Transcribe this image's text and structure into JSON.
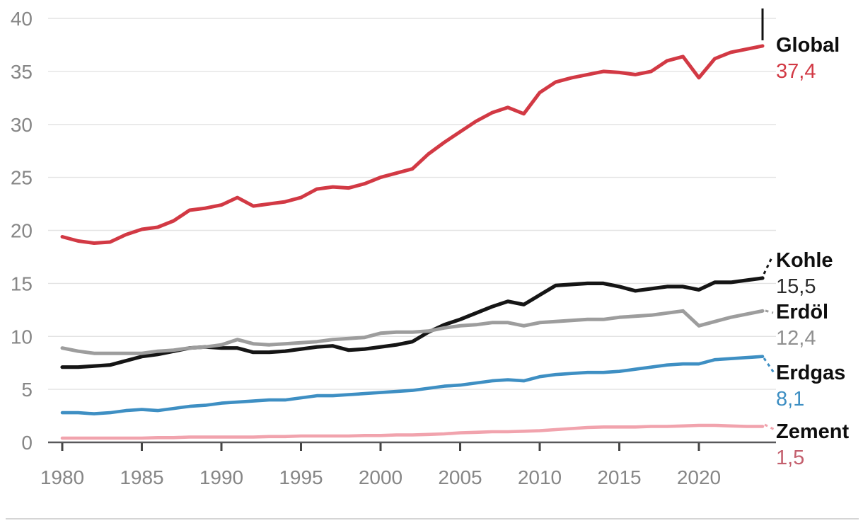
{
  "chart_data": {
    "type": "line",
    "x": [
      1980,
      1981,
      1982,
      1983,
      1984,
      1985,
      1986,
      1987,
      1988,
      1989,
      1990,
      1991,
      1992,
      1993,
      1994,
      1995,
      1996,
      1997,
      1998,
      1999,
      2000,
      2001,
      2002,
      2003,
      2004,
      2005,
      2006,
      2007,
      2008,
      2009,
      2010,
      2011,
      2012,
      2013,
      2014,
      2015,
      2016,
      2017,
      2018,
      2019,
      2020,
      2021,
      2022,
      2023,
      2024
    ],
    "x_ticks": [
      1980,
      1985,
      1990,
      1995,
      2000,
      2005,
      2010,
      2015,
      2020
    ],
    "y_ticks": [
      0,
      5,
      10,
      15,
      20,
      25,
      30,
      35,
      40
    ],
    "xlim": [
      1980,
      2024
    ],
    "ylim": [
      0,
      40
    ],
    "grid": "horizontal",
    "legend_position": "right-end-labels",
    "series": [
      {
        "id": "global",
        "label": "Global",
        "end_value_label": "37,4",
        "color": "#d23944",
        "value_color": "#d23944",
        "values": [
          19.4,
          19.0,
          18.8,
          18.9,
          19.6,
          20.1,
          20.3,
          20.9,
          21.9,
          22.1,
          22.4,
          23.1,
          22.3,
          22.5,
          22.7,
          23.1,
          23.9,
          24.1,
          24.0,
          24.4,
          25.0,
          25.4,
          25.8,
          27.2,
          28.3,
          29.3,
          30.3,
          31.1,
          31.6,
          31.0,
          33.0,
          34.0,
          34.4,
          34.7,
          35.0,
          34.9,
          34.7,
          35.0,
          36.0,
          36.4,
          34.4,
          36.2,
          36.8,
          37.1,
          37.4
        ]
      },
      {
        "id": "kohle",
        "label": "Kohle",
        "end_value_label": "15,5",
        "color": "#151515",
        "value_color": "#2b2b2b",
        "values": [
          7.1,
          7.1,
          7.2,
          7.3,
          7.7,
          8.1,
          8.3,
          8.6,
          8.9,
          9.0,
          8.9,
          8.9,
          8.5,
          8.5,
          8.6,
          8.8,
          9.0,
          9.1,
          8.7,
          8.8,
          9.0,
          9.2,
          9.5,
          10.4,
          11.1,
          11.6,
          12.2,
          12.8,
          13.3,
          13.0,
          13.9,
          14.8,
          14.9,
          15.0,
          15.0,
          14.7,
          14.3,
          14.5,
          14.7,
          14.7,
          14.4,
          15.1,
          15.1,
          15.3,
          15.5
        ]
      },
      {
        "id": "erdoel",
        "label": "Erdöl",
        "end_value_label": "12,4",
        "color": "#9d9d9d",
        "value_color": "#8f8f8f",
        "values": [
          8.9,
          8.6,
          8.4,
          8.4,
          8.4,
          8.4,
          8.6,
          8.7,
          8.9,
          9.0,
          9.2,
          9.7,
          9.3,
          9.2,
          9.3,
          9.4,
          9.5,
          9.7,
          9.8,
          9.9,
          10.3,
          10.4,
          10.4,
          10.5,
          10.8,
          11.0,
          11.1,
          11.3,
          11.3,
          11.0,
          11.3,
          11.4,
          11.5,
          11.6,
          11.6,
          11.8,
          11.9,
          12.0,
          12.2,
          12.4,
          11.0,
          11.4,
          11.8,
          12.1,
          12.4
        ]
      },
      {
        "id": "erdgas",
        "label": "Erdgas",
        "end_value_label": "8,1",
        "color": "#3e8fc3",
        "value_color": "#3e8fc3",
        "values": [
          2.8,
          2.8,
          2.7,
          2.8,
          3.0,
          3.1,
          3.0,
          3.2,
          3.4,
          3.5,
          3.7,
          3.8,
          3.9,
          4.0,
          4.0,
          4.2,
          4.4,
          4.4,
          4.5,
          4.6,
          4.7,
          4.8,
          4.9,
          5.1,
          5.3,
          5.4,
          5.6,
          5.8,
          5.9,
          5.8,
          6.2,
          6.4,
          6.5,
          6.6,
          6.6,
          6.7,
          6.9,
          7.1,
          7.3,
          7.4,
          7.4,
          7.8,
          7.9,
          8.0,
          8.1
        ]
      },
      {
        "id": "zement",
        "label": "Zement",
        "end_value_label": "1,5",
        "color": "#f1a3ad",
        "value_color": "#c4606e",
        "values": [
          0.4,
          0.4,
          0.4,
          0.4,
          0.4,
          0.4,
          0.45,
          0.45,
          0.5,
          0.5,
          0.5,
          0.5,
          0.5,
          0.55,
          0.55,
          0.6,
          0.6,
          0.6,
          0.6,
          0.65,
          0.65,
          0.7,
          0.7,
          0.75,
          0.8,
          0.9,
          0.95,
          1.0,
          1.0,
          1.05,
          1.1,
          1.2,
          1.3,
          1.4,
          1.45,
          1.45,
          1.45,
          1.5,
          1.5,
          1.55,
          1.6,
          1.6,
          1.55,
          1.5,
          1.5
        ]
      }
    ],
    "end_marker": {
      "series": "Global",
      "color": "#111111"
    }
  }
}
